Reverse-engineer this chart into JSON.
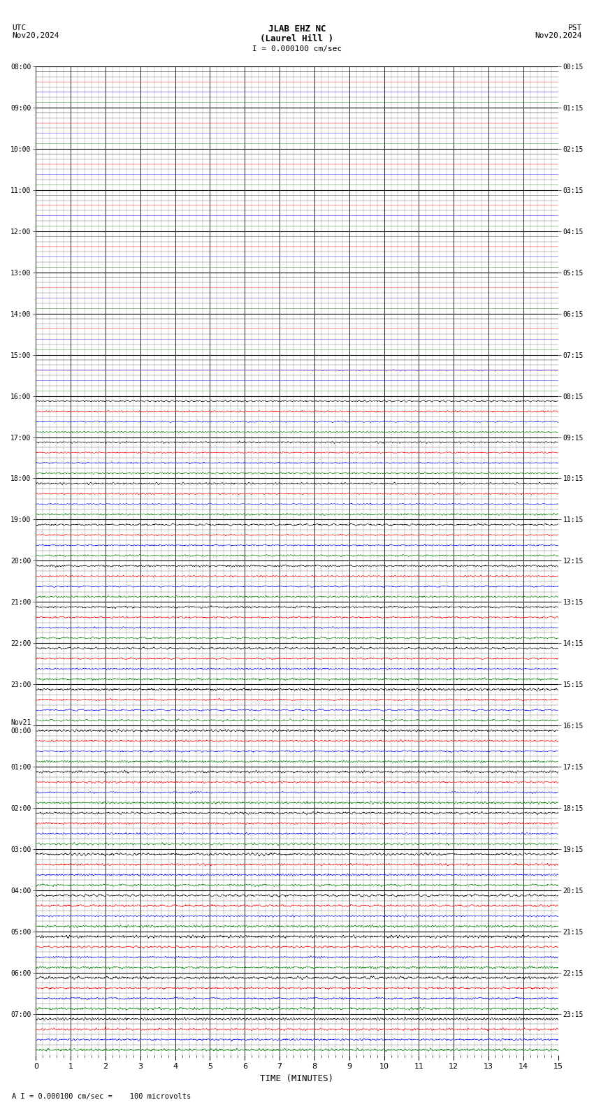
{
  "title_line1": "JLAB EHZ NC",
  "title_line2": "(Laurel Hill )",
  "scale_label": "I = 0.000100 cm/sec",
  "utc_label": "UTC\nNov20,2024",
  "pst_label": "PST\nNov20,2024",
  "bottom_label": "A I = 0.000100 cm/sec =    100 microvolts",
  "xlabel": "TIME (MINUTES)",
  "left_times": [
    "08:00",
    "09:00",
    "10:00",
    "11:00",
    "12:00",
    "13:00",
    "14:00",
    "15:00",
    "16:00",
    "17:00",
    "18:00",
    "19:00",
    "20:00",
    "21:00",
    "22:00",
    "23:00",
    "Nov21\n00:00",
    "01:00",
    "02:00",
    "03:00",
    "04:00",
    "05:00",
    "06:00",
    "07:00"
  ],
  "right_times": [
    "00:15",
    "01:15",
    "02:15",
    "03:15",
    "04:15",
    "05:15",
    "06:15",
    "07:15",
    "08:15",
    "09:15",
    "10:15",
    "11:15",
    "12:15",
    "13:15",
    "14:15",
    "15:15",
    "16:15",
    "17:15",
    "18:15",
    "19:15",
    "20:15",
    "21:15",
    "22:15",
    "23:15"
  ],
  "n_rows": 24,
  "n_traces_per_row": 4,
  "colors": [
    "black",
    "red",
    "blue",
    "green"
  ],
  "bg_color": "white",
  "xmin": 0,
  "xmax": 15,
  "noise_seed": 12345,
  "quiet_rows": 7,
  "partial_row": 7,
  "samples_per_trace": 2700
}
